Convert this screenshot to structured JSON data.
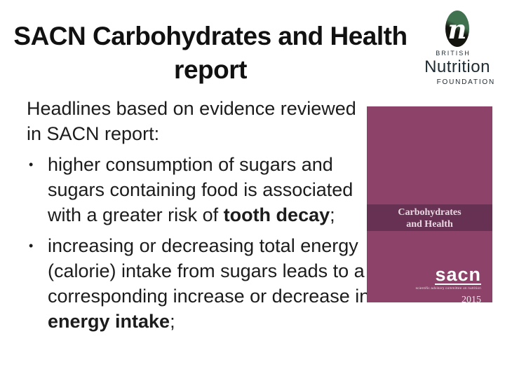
{
  "title": {
    "line1": "SACN Carbohydrates and Health",
    "line2": "report"
  },
  "logo": {
    "n_glyph": "n",
    "british": "BRITISH",
    "nutrition": "Nutrition",
    "foundation": "FOUNDATION"
  },
  "body": {
    "intro_line1": "Headlines based on evidence reviewed",
    "intro_line2": "in SACN report:",
    "bullet_glyph": "•",
    "bullet1": {
      "line1": "higher consumption of sugars and",
      "line2": "sugars containing food is associated",
      "line3_pre": "with a greater risk of ",
      "line3_bold": "tooth decay",
      "line3_post": ";"
    },
    "bullet2": {
      "line1": "increasing or decreasing total energy",
      "line2": "(calorie) intake from sugars leads to a",
      "line3": "corresponding increase or decrease in",
      "line4_bold": "energy intake",
      "line4_post": ";"
    }
  },
  "book_cover": {
    "band_line1": "Carbohydrates",
    "band_line2": "and Health",
    "logo_text": "sacn",
    "tagline": "scientific advisory committee on nutrition",
    "year": "2015"
  },
  "colors": {
    "cover_main": "#8d4369",
    "cover_band": "#663152",
    "logo_green": "#41724f",
    "logo_black": "#15150f",
    "text": "#1a1a1a"
  }
}
